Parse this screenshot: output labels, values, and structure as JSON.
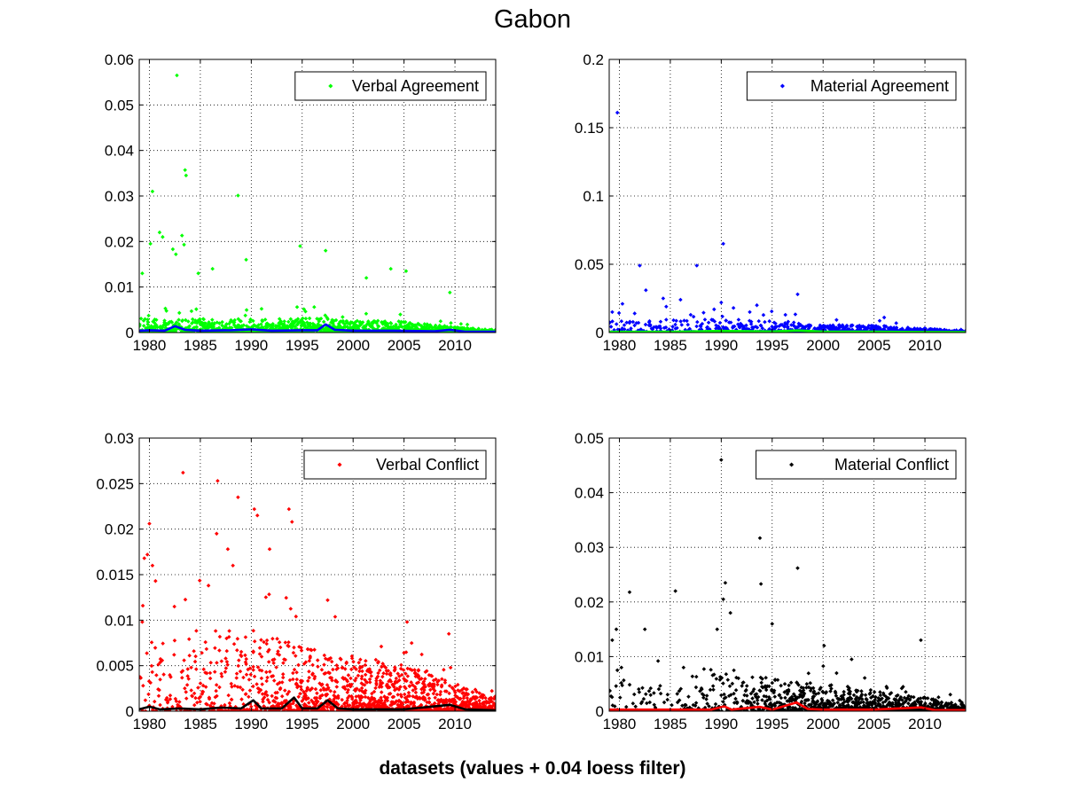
{
  "title": "Gabon",
  "xlabel": "datasets (values + 0.04 loess filter)",
  "chart_data": [
    {
      "type": "scatter",
      "legend": "Verbal Agreement",
      "color": "#00ff00",
      "filter_color": "#0000ff",
      "legend_position": "top-right",
      "grid": true,
      "xlim": [
        1979,
        2014
      ],
      "ylim": [
        0,
        0.06
      ],
      "xticks": [
        1980,
        1985,
        1990,
        1995,
        2000,
        2005,
        2010
      ],
      "yticks": [
        0,
        0.01,
        0.02,
        0.03,
        0.04,
        0.05,
        0.06
      ],
      "ytick_labels": [
        "0",
        "0.01",
        "0.02",
        "0.03",
        "0.04",
        "0.05",
        "0.06"
      ],
      "highlights": [
        [
          1982.7,
          0.0565
        ],
        [
          1983.5,
          0.0357
        ],
        [
          1983.6,
          0.0345
        ],
        [
          1980.3,
          0.031
        ],
        [
          1988.7,
          0.0301
        ],
        [
          1981.0,
          0.022
        ],
        [
          1981.3,
          0.021
        ],
        [
          1983.2,
          0.0213
        ],
        [
          1983.4,
          0.0193
        ],
        [
          1982.3,
          0.0183
        ],
        [
          1982.6,
          0.0172
        ],
        [
          1980.1,
          0.0195
        ],
        [
          1994.8,
          0.019
        ],
        [
          1997.3,
          0.018
        ],
        [
          1984.8,
          0.013
        ],
        [
          1986.2,
          0.014
        ],
        [
          1989.5,
          0.016
        ],
        [
          2003.7,
          0.014
        ],
        [
          2005.2,
          0.0135
        ],
        [
          2001.3,
          0.012
        ],
        [
          1979.3,
          0.013
        ],
        [
          2009.5,
          0.0088
        ]
      ],
      "filter": [
        [
          1979,
          0.0004
        ],
        [
          1980,
          0.0005
        ],
        [
          1981.5,
          0.0004
        ],
        [
          1982.5,
          0.0014
        ],
        [
          1983.5,
          0.0006
        ],
        [
          1985,
          0.0004
        ],
        [
          1988,
          0.0005
        ],
        [
          1990,
          0.0007
        ],
        [
          1992,
          0.0004
        ],
        [
          1995,
          0.0005
        ],
        [
          1996.5,
          0.0005
        ],
        [
          1997.3,
          0.0018
        ],
        [
          1998.2,
          0.0006
        ],
        [
          2000,
          0.0004
        ],
        [
          2004,
          0.0004
        ],
        [
          2008,
          0.0003
        ],
        [
          2009.5,
          0.0006
        ],
        [
          2011,
          0.0002
        ],
        [
          2014,
          0.0002
        ]
      ],
      "density": [
        [
          1979,
          0.003,
          30
        ],
        [
          1985,
          0.003,
          32
        ],
        [
          1990,
          0.003,
          32
        ],
        [
          1995,
          0.0032,
          35
        ],
        [
          2000,
          0.0028,
          40
        ],
        [
          2005,
          0.0024,
          42
        ],
        [
          2010,
          0.0012,
          48
        ],
        [
          2014,
          0.0005,
          48
        ]
      ],
      "seed": 11
    },
    {
      "type": "scatter",
      "legend": "Material Agreement",
      "color": "#0000ff",
      "filter_color": "#00ff00",
      "legend_position": "top-right",
      "grid": true,
      "xlim": [
        1979,
        2014
      ],
      "ylim": [
        0,
        0.2
      ],
      "xticks": [
        1980,
        1985,
        1990,
        1995,
        2000,
        2005,
        2010
      ],
      "yticks": [
        0,
        0.05,
        0.1,
        0.15,
        0.2
      ],
      "ytick_labels": [
        "0",
        "0.05",
        "0.1",
        "0.15",
        "0.2"
      ],
      "highlights": [
        [
          1979.8,
          0.161
        ],
        [
          1990.2,
          0.065
        ],
        [
          1982.0,
          0.049
        ],
        [
          1987.6,
          0.049
        ],
        [
          1982.6,
          0.031
        ],
        [
          1997.5,
          0.028
        ],
        [
          1984.3,
          0.025
        ],
        [
          1986.0,
          0.024
        ],
        [
          1980.3,
          0.021
        ],
        [
          1990.0,
          0.022
        ],
        [
          1993.5,
          0.02
        ],
        [
          1979.3,
          0.015
        ],
        [
          1984.6,
          0.019
        ],
        [
          1989.3,
          0.017
        ],
        [
          1991.2,
          0.018
        ],
        [
          1981.5,
          0.014
        ],
        [
          1992.8,
          0.015
        ],
        [
          1996.3,
          0.013
        ],
        [
          2006.0,
          0.011
        ],
        [
          1987.0,
          0.013
        ]
      ],
      "filter": [
        [
          1979,
          0.0005
        ],
        [
          1985,
          0.0006
        ],
        [
          1990,
          0.0012
        ],
        [
          1995,
          0.0008
        ],
        [
          1997.5,
          0.0015
        ],
        [
          2000,
          0.0007
        ],
        [
          2005,
          0.0006
        ],
        [
          2010,
          0.0004
        ],
        [
          2014,
          0.0003
        ]
      ],
      "density": [
        [
          1979,
          0.009,
          10
        ],
        [
          1985,
          0.01,
          12
        ],
        [
          1990,
          0.01,
          16
        ],
        [
          1995,
          0.009,
          22
        ],
        [
          2000,
          0.006,
          30
        ],
        [
          2005,
          0.005,
          34
        ],
        [
          2010,
          0.003,
          34
        ],
        [
          2014,
          0.001,
          34
        ]
      ],
      "seed": 29
    },
    {
      "type": "scatter",
      "legend": "Verbal Conflict",
      "color": "#ff0000",
      "filter_color": "#000000",
      "legend_position": "top-right",
      "grid": true,
      "xlim": [
        1979,
        2014
      ],
      "ylim": [
        0,
        0.03
      ],
      "xticks": [
        1980,
        1985,
        1990,
        1995,
        2000,
        2005,
        2010
      ],
      "yticks": [
        0,
        0.005,
        0.01,
        0.015,
        0.02,
        0.025,
        0.03
      ],
      "ytick_labels": [
        "0",
        "0.005",
        "0.01",
        "0.015",
        "0.02",
        "0.025",
        "0.03"
      ],
      "highlights": [
        [
          1983.3,
          0.0262
        ],
        [
          1986.7,
          0.0253
        ],
        [
          1988.7,
          0.0235
        ],
        [
          1990.3,
          0.0222
        ],
        [
          1990.6,
          0.0215
        ],
        [
          1993.7,
          0.0222
        ],
        [
          1994.0,
          0.0208
        ],
        [
          1980.0,
          0.0206
        ],
        [
          1979.5,
          0.0168
        ],
        [
          1979.8,
          0.0172
        ],
        [
          1980.3,
          0.016
        ],
        [
          1986.6,
          0.0195
        ],
        [
          1987.7,
          0.0178
        ],
        [
          1991.8,
          0.0178
        ],
        [
          1980.6,
          0.0143
        ],
        [
          1985.8,
          0.0138
        ],
        [
          1988.2,
          0.016
        ],
        [
          1997.5,
          0.0122
        ],
        [
          2005.3,
          0.0098
        ],
        [
          2009.4,
          0.0085
        ],
        [
          1979.3,
          0.0098
        ]
      ],
      "filter": [
        [
          1979,
          0.0002
        ],
        [
          1980,
          0.0005
        ],
        [
          1981,
          0.0002
        ],
        [
          1983,
          0.0003
        ],
        [
          1985,
          0.0002
        ],
        [
          1987,
          0.0004
        ],
        [
          1989,
          0.0003
        ],
        [
          1990.2,
          0.0012
        ],
        [
          1991,
          0.0003
        ],
        [
          1993,
          0.0003
        ],
        [
          1994.2,
          0.0015
        ],
        [
          1995,
          0.0003
        ],
        [
          1996.5,
          0.0003
        ],
        [
          1997.5,
          0.0012
        ],
        [
          1998.5,
          0.0003
        ],
        [
          2000,
          0.0002
        ],
        [
          2005,
          0.0002
        ],
        [
          2009.5,
          0.0007
        ],
        [
          2011,
          0.0002
        ],
        [
          2014,
          0.0001
        ]
      ],
      "density": [
        [
          1979,
          0.008,
          12
        ],
        [
          1982,
          0.008,
          16
        ],
        [
          1985,
          0.009,
          22
        ],
        [
          1990,
          0.009,
          32
        ],
        [
          1995,
          0.007,
          45
        ],
        [
          2000,
          0.006,
          58
        ],
        [
          2005,
          0.005,
          58
        ],
        [
          2010,
          0.003,
          55
        ],
        [
          2014,
          0.0015,
          50
        ]
      ],
      "seed": 47
    },
    {
      "type": "scatter",
      "legend": "Material Conflict",
      "color": "#000000",
      "filter_color": "#ff0000",
      "legend_position": "top-right",
      "grid": true,
      "xlim": [
        1979,
        2014
      ],
      "ylim": [
        0,
        0.05
      ],
      "xticks": [
        1980,
        1985,
        1990,
        1995,
        2000,
        2005,
        2010
      ],
      "yticks": [
        0,
        0.01,
        0.02,
        0.03,
        0.04,
        0.05
      ],
      "ytick_labels": [
        "0",
        "0.01",
        "0.02",
        "0.03",
        "0.04",
        "0.05"
      ],
      "highlights": [
        [
          1990.0,
          0.046
        ],
        [
          1993.8,
          0.0317
        ],
        [
          1997.5,
          0.0262
        ],
        [
          1990.4,
          0.0235
        ],
        [
          1993.9,
          0.0233
        ],
        [
          1981.0,
          0.0218
        ],
        [
          1985.5,
          0.022
        ],
        [
          1990.2,
          0.0205
        ],
        [
          1982.5,
          0.015
        ],
        [
          1979.3,
          0.013
        ],
        [
          1979.7,
          0.015
        ],
        [
          1989.6,
          0.015
        ],
        [
          1990.9,
          0.018
        ],
        [
          1995.0,
          0.016
        ],
        [
          2009.6,
          0.013
        ],
        [
          1979.8,
          0.0075
        ],
        [
          1980.2,
          0.008
        ],
        [
          1983.8,
          0.0092
        ],
        [
          1986.3,
          0.008
        ],
        [
          2002.8,
          0.0095
        ],
        [
          2000.1,
          0.012
        ]
      ],
      "filter": [
        [
          1979,
          0.0003
        ],
        [
          1985,
          0.0003
        ],
        [
          1989,
          0.0003
        ],
        [
          1990.3,
          0.0009
        ],
        [
          1991,
          0.0003
        ],
        [
          1993.8,
          0.0008
        ],
        [
          1995,
          0.0003
        ],
        [
          1997.4,
          0.0016
        ],
        [
          1998.5,
          0.0004
        ],
        [
          2000,
          0.0003
        ],
        [
          2005,
          0.0003
        ],
        [
          2009.6,
          0.0007
        ],
        [
          2011,
          0.0002
        ],
        [
          2014,
          0.0002
        ]
      ],
      "density": [
        [
          1979,
          0.006,
          6
        ],
        [
          1985,
          0.006,
          8
        ],
        [
          1990,
          0.007,
          20
        ],
        [
          1995,
          0.006,
          34
        ],
        [
          2000,
          0.005,
          44
        ],
        [
          2005,
          0.004,
          44
        ],
        [
          2010,
          0.0025,
          40
        ],
        [
          2014,
          0.0012,
          36
        ]
      ],
      "seed": 83
    }
  ]
}
